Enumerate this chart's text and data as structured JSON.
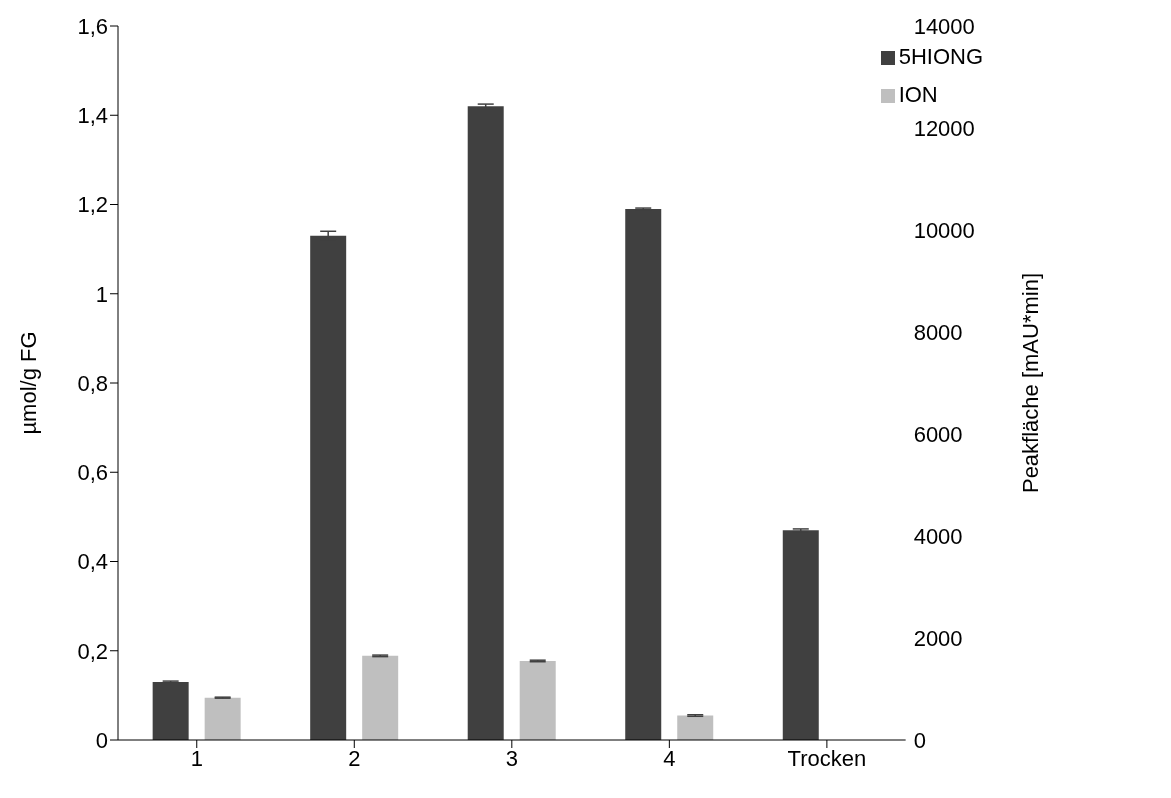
{
  "chart_data": {
    "type": "bar",
    "categories": [
      "1",
      "2",
      "3",
      "4",
      "Trocken"
    ],
    "ylabel": "µmol/g  FG",
    "y2label": "Peakfläche [mAU*min]",
    "series": [
      {
        "name": "5HIONG",
        "color": "#404040",
        "values": [
          0.13,
          1.13,
          1.42,
          1.19,
          0.47
        ],
        "errors": [
          0.002,
          0.01,
          0.005,
          0.002,
          0.003
        ]
      },
      {
        "name": "ION",
        "color": "#bfbfbf",
        "axis": "y2",
        "values": [
          830,
          1650,
          1550,
          480,
          null
        ],
        "errors": [
          10,
          15,
          15,
          15,
          null
        ]
      }
    ],
    "ylim": [
      0,
      1.6
    ],
    "yticks": [
      0,
      {
        "value": 0.2,
        "label": "0,2"
      },
      {
        "value": 0.4,
        "label": "0,4"
      },
      {
        "value": 0.6,
        "label": "0,6"
      },
      {
        "value": 0.8,
        "label": "0,8"
      },
      1,
      {
        "value": 1.2,
        "label": "1,2"
      },
      {
        "value": 1.4,
        "label": "1,4"
      },
      {
        "value": 1.6,
        "label": "1,6"
      }
    ],
    "y2lim": [
      0,
      14000
    ],
    "y2ticks": [
      0,
      2000,
      4000,
      6000,
      8000,
      10000,
      12000,
      14000
    ],
    "grid": false,
    "legend": "top right"
  }
}
